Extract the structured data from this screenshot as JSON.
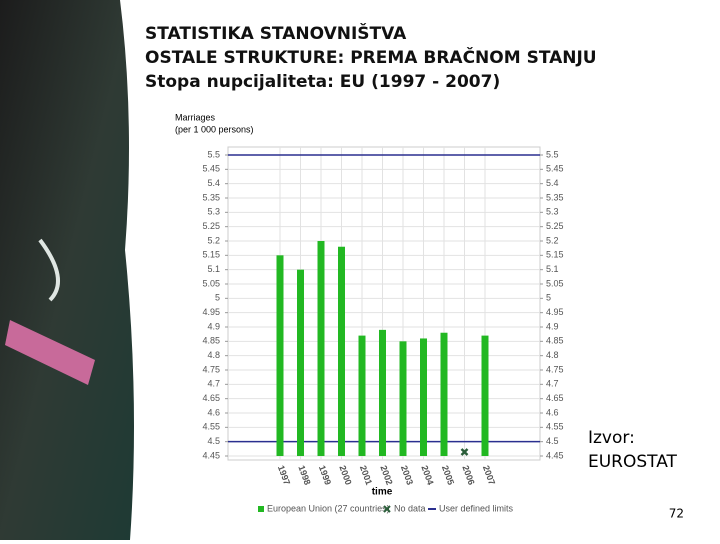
{
  "slide": {
    "title_lines": [
      "STATISTIKA STANOVNIŠTVA",
      "OSTALE STRUKTURE: PREMA BRAČNOM STANJU",
      "Stopa nupcijaliteta: EU (1997 - 2007)"
    ],
    "source": [
      "Izvor:",
      "EUROSTAT"
    ],
    "page_number": "72"
  },
  "chart_data": {
    "type": "bar",
    "title": "Marriages",
    "subtitle": "(per 1 000 persons)",
    "x_label": "time",
    "categories": [
      "1997",
      "1998",
      "1999",
      "2000",
      "2001",
      "2002",
      "2003",
      "2004",
      "2005",
      "2006",
      "2007"
    ],
    "series": [
      {
        "name": "European Union (27 countries)",
        "color": "#22b822",
        "values": [
          5.15,
          5.1,
          5.2,
          5.18,
          4.87,
          4.89,
          4.85,
          4.86,
          4.88,
          null,
          4.87
        ]
      }
    ],
    "no_data": {
      "name": "No data",
      "color": "#2b5e3a"
    },
    "limits": {
      "name": "User defined limits",
      "color": "#2a2f8f",
      "values": [
        5.5,
        4.5
      ]
    },
    "ylim": [
      4.45,
      5.5
    ],
    "yticks": [
      4.45,
      4.5,
      4.55,
      4.6,
      4.65,
      4.7,
      4.75,
      4.8,
      4.85,
      4.9,
      4.95,
      5,
      5.05,
      5.1,
      5.15,
      5.2,
      5.25,
      5.3,
      5.35,
      5.4,
      5.45,
      5.5
    ],
    "grid": true
  }
}
